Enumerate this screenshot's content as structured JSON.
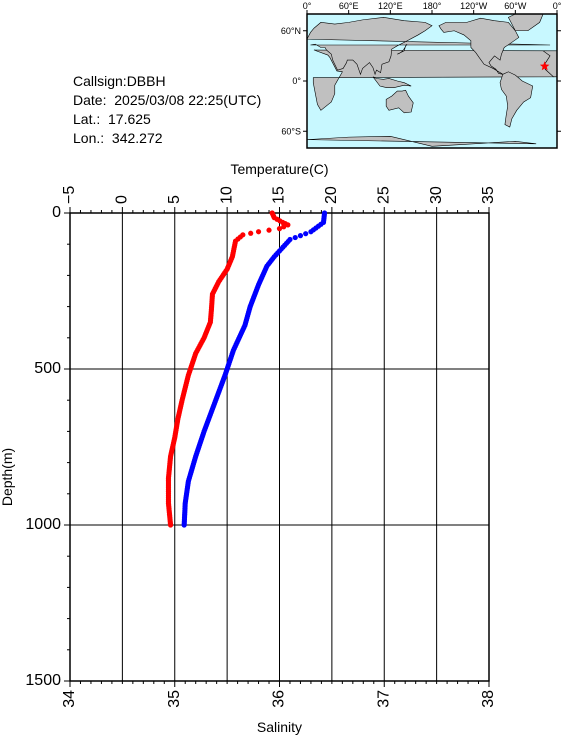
{
  "info": {
    "callsign": "Callsign:DBBH",
    "date": "Date:  2025/03/08 22:25(UTC)",
    "lat": "Lat.:  17.625",
    "lon": "Lon.:  342.272"
  },
  "map": {
    "lon_labels": [
      "0°",
      "60°E",
      "120°E",
      "180°",
      "120°W",
      "60°W",
      "0°"
    ],
    "lat_labels": [
      "60°N",
      "0°",
      "60°S"
    ],
    "station_lon": 342.272,
    "station_lat": 17.625,
    "land_color": "#c0c0c0",
    "ocean_color": "#c8f8ff",
    "marker_color": "#ff0000"
  },
  "chart_data": {
    "type": "line",
    "top_axis": {
      "label": "Temperature(C)",
      "min": -5,
      "max": 35,
      "ticks": [
        -5,
        0,
        5,
        10,
        15,
        20,
        25,
        30,
        35
      ],
      "tick_labels": [
        "−5",
        "0",
        "5",
        "10",
        "15",
        "20",
        "25",
        "30",
        "35"
      ]
    },
    "bottom_axis": {
      "label": "Salinity",
      "min": 34,
      "max": 38,
      "ticks": [
        34,
        35,
        36,
        37,
        38
      ],
      "tick_labels": [
        "34",
        "35",
        "36",
        "37",
        "38"
      ]
    },
    "y_axis": {
      "label": "Depth(m)",
      "min": 0,
      "max": 1500,
      "ticks": [
        0,
        500,
        1000,
        1500
      ],
      "tick_labels": [
        "0",
        "500",
        "1000",
        "1500"
      ],
      "inverted": true
    },
    "grid": true,
    "series": [
      {
        "axis": "bottom",
        "color": "#ff0000",
        "points": [
          [
            35.93,
            0
          ],
          [
            35.95,
            15
          ],
          [
            36.03,
            30
          ],
          [
            36.08,
            38
          ],
          [
            36.0,
            50
          ],
          [
            35.8,
            60
          ],
          [
            35.65,
            70
          ],
          [
            35.58,
            90
          ],
          [
            35.55,
            140
          ],
          [
            35.5,
            180
          ],
          [
            35.42,
            220
          ],
          [
            35.36,
            260
          ],
          [
            35.35,
            310
          ],
          [
            35.34,
            350
          ],
          [
            35.28,
            400
          ],
          [
            35.2,
            450
          ],
          [
            35.13,
            520
          ],
          [
            35.07,
            600
          ],
          [
            35.03,
            660
          ],
          [
            35.0,
            720
          ],
          [
            34.96,
            780
          ],
          [
            34.94,
            850
          ],
          [
            34.94,
            930
          ],
          [
            34.96,
            1000
          ]
        ]
      },
      {
        "axis": "top",
        "color": "#0000ff",
        "points": [
          [
            19.3,
            0
          ],
          [
            19.2,
            30
          ],
          [
            18.0,
            60
          ],
          [
            16.0,
            85
          ],
          [
            14.5,
            140
          ],
          [
            13.8,
            170
          ],
          [
            13.0,
            230
          ],
          [
            12.2,
            300
          ],
          [
            11.7,
            360
          ],
          [
            10.6,
            440
          ],
          [
            9.8,
            520
          ],
          [
            8.8,
            610
          ],
          [
            7.8,
            700
          ],
          [
            7.0,
            780
          ],
          [
            6.3,
            860
          ],
          [
            6.0,
            930
          ],
          [
            5.9,
            1000
          ]
        ]
      }
    ]
  }
}
